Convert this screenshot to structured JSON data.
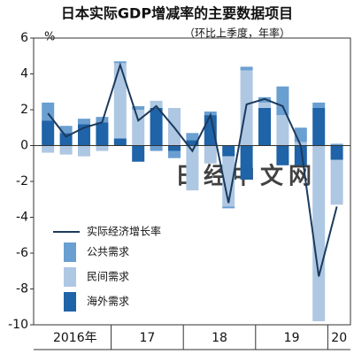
{
  "chart_data": {
    "type": "bar",
    "title": "日本实际GDP增减率的主要数据项目",
    "subtitle": "（环比上季度，年率）",
    "unit": "%",
    "watermark": "日经中文网",
    "x_labels": [
      "2016年",
      "17",
      "18",
      "19",
      "20"
    ],
    "ylim": [
      -10,
      6
    ],
    "yticks": [
      6,
      4,
      2,
      0,
      -2,
      -4,
      -6,
      -8,
      -10
    ],
    "series": [
      {
        "name": "海外需求",
        "color": "#1f63a8",
        "values": [
          1.4,
          0.7,
          1.2,
          1.3,
          0.4,
          -0.9,
          2.1,
          -0.3,
          0.3,
          1.7,
          -0.6,
          -1.9,
          2.1,
          -1.1,
          -1.1,
          2.1,
          -0.8
        ]
      },
      {
        "name": "民间需求",
        "color": "#aec7e3",
        "values": [
          -0.4,
          -0.5,
          -0.6,
          -0.3,
          4.2,
          2.0,
          0.4,
          2.1,
          -2.5,
          -1.0,
          -2.8,
          4.2,
          0.3,
          1.7,
          0.2,
          -9.8,
          -2.5
        ]
      },
      {
        "name": "公共需求",
        "color": "#6a9fd1",
        "values": [
          1.0,
          0.4,
          0.3,
          0.3,
          0.1,
          0.2,
          -0.3,
          -0.4,
          0.4,
          0.2,
          -0.1,
          0.2,
          0.3,
          1.6,
          0.8,
          0.3,
          0.1
        ]
      }
    ],
    "line": {
      "name": "实际经济增长率",
      "color": "#1c3a5c",
      "values": [
        1.8,
        0.5,
        1.0,
        1.3,
        4.5,
        1.4,
        2.2,
        1.0,
        -0.3,
        1.7,
        -3.2,
        2.3,
        2.6,
        2.2,
        0.0,
        -7.3,
        -3.4
      ]
    }
  }
}
